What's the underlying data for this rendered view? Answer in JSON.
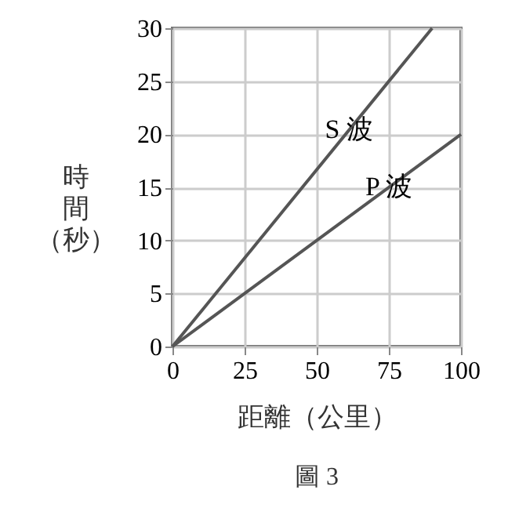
{
  "chart_data": {
    "type": "line",
    "xlabel": "距離（公里）",
    "ylabel": "時間（秒）",
    "series": [
      {
        "name": "S 波",
        "color": "#555555",
        "x": [
          0,
          90
        ],
        "values": [
          0,
          30
        ]
      },
      {
        "name": "P 波",
        "color": "#555555",
        "x": [
          0,
          100
        ],
        "values": [
          0,
          20
        ]
      }
    ],
    "xlim": [
      0,
      100
    ],
    "xticks": [
      0,
      25,
      50,
      75,
      100
    ],
    "ylim": [
      0,
      30
    ],
    "yticks": [
      0,
      5,
      10,
      15,
      20,
      25,
      30
    ],
    "grid": true,
    "marker": "none",
    "line_style": "solid",
    "annotations": [
      "圖 3"
    ]
  }
}
